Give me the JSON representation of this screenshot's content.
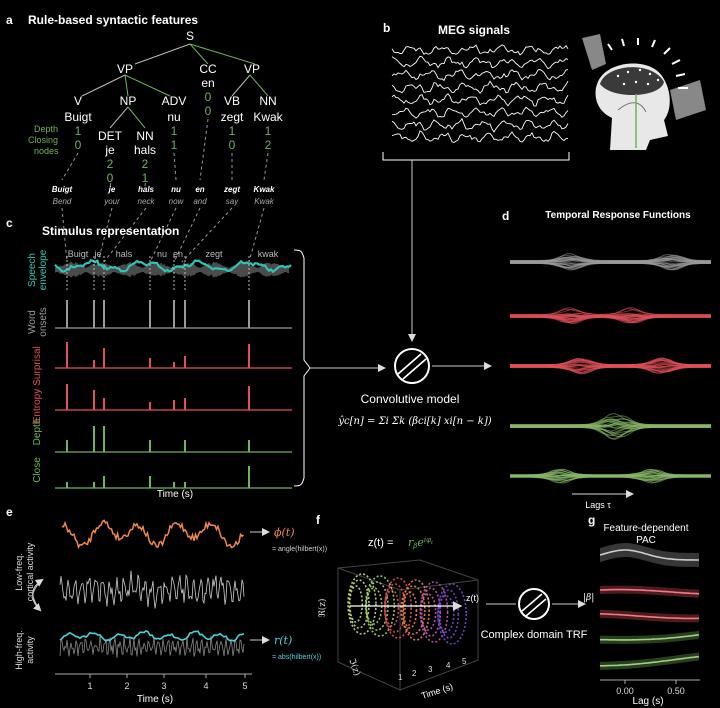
{
  "panel_a": {
    "letter": "a",
    "title": "Rule-based syntactic features",
    "tree": {
      "root": "S",
      "level1": [
        "VP",
        "CC",
        "VP"
      ],
      "level1_sub": [
        "",
        "en",
        ""
      ],
      "level2": [
        "V",
        "NP",
        "ADV",
        "VB",
        "NN"
      ],
      "level2_sub": [
        "Buigt",
        "",
        "nu",
        "zegt",
        "Kwak"
      ],
      "np_children": [
        "DET",
        "NN"
      ],
      "np_children_sub": [
        "je",
        "hals"
      ]
    },
    "depth_label": "Depth",
    "closing_label": "Closing nodes",
    "leaf_values": [
      {
        "word": "Buigt",
        "depth": "1",
        "close": "0"
      },
      {
        "word": "je",
        "depth": "2",
        "close": "0"
      },
      {
        "word": "hals",
        "depth": "2",
        "close": "1"
      },
      {
        "word": "nu",
        "depth": "1",
        "close": "1"
      },
      {
        "word": "en",
        "depth": "0",
        "close": "0"
      },
      {
        "word": "zegt",
        "depth": "1",
        "close": "0"
      },
      {
        "word": "Kwak",
        "depth": "1",
        "close": "2"
      }
    ],
    "glosses": [
      {
        "dutch": "Buigt",
        "english": "Bend"
      },
      {
        "dutch": "je",
        "english": "your"
      },
      {
        "dutch": "hals",
        "english": "neck"
      },
      {
        "dutch": "nu",
        "english": "now"
      },
      {
        "dutch": "en",
        "english": "and"
      },
      {
        "dutch": "zegt",
        "english": "say"
      },
      {
        "dutch": "Kwak",
        "english": "Kwak"
      }
    ]
  },
  "panel_b": {
    "letter": "b",
    "title": "MEG signals"
  },
  "panel_c": {
    "letter": "c",
    "title": "Stimulus representation",
    "word_labels": [
      "Buigt",
      "je",
      "hals",
      "nu",
      "en",
      "zegt",
      "kwak"
    ],
    "rows": [
      {
        "label_line1": "Speech",
        "label_line2": "envelope",
        "color": "#2ec4b6"
      },
      {
        "label_line1": "Word",
        "label_line2": "onsets",
        "color": "#9a9a9a"
      },
      {
        "label_line1": "Surprisal",
        "label_line2": "",
        "color": "#e0505a"
      },
      {
        "label_line1": "Entropy",
        "label_line2": "",
        "color": "#e0505a"
      },
      {
        "label_line1": "Depth",
        "label_line2": "",
        "color": "#6fb35a"
      },
      {
        "label_line1": "Close",
        "label_line2": "",
        "color": "#6fb35a"
      }
    ],
    "xlabel": "Time (s)"
  },
  "convolution": {
    "label": "Convolutive model",
    "equation": "ŷc[n] = Σi Σk (βci[k] xi[n − k])"
  },
  "panel_d": {
    "letter": "d",
    "title": "Temporal Response Functions",
    "lags_label": "Lags τ",
    "colors": [
      "#9a9a9a",
      "#e0505a",
      "#e0505a",
      "#88b86a",
      "#88b86a"
    ]
  },
  "panel_e": {
    "letter": "e",
    "low_label_1": "Low-freq.",
    "low_label_2": "cortical activity",
    "high_label_1": "High-freq.",
    "high_label_2": "activity",
    "phi_label": "ϕ(t)",
    "phi_formula": "= angle(hilbert(x))",
    "r_label": "r(t)",
    "r_formula": "= abs(hilbert(x))",
    "xlabel": "Time (s)",
    "xticks": [
      "1",
      "2",
      "3",
      "4",
      "5"
    ]
  },
  "panel_f": {
    "letter": "f",
    "formula": "z(t) = rβe^iφt",
    "z_label": "z(t)",
    "re_axis": "ℜ(z)",
    "im_axis": "ℑ(z)",
    "xlabel": "Time (s)",
    "xticks": [
      "1",
      "2",
      "3",
      "4",
      "5"
    ],
    "trf_label": "Complex domain TRF"
  },
  "panel_g": {
    "letter": "g",
    "title_line1": "Feature-dependent",
    "title_line2": "PAC",
    "beta_label": "|β|",
    "xlabel": "Lag (s)",
    "xticks": [
      "0.00",
      "0.50"
    ],
    "colors": [
      "#9a9a9a",
      "#e0505a",
      "#e0505a",
      "#6fb35a",
      "#6fb35a"
    ]
  }
}
